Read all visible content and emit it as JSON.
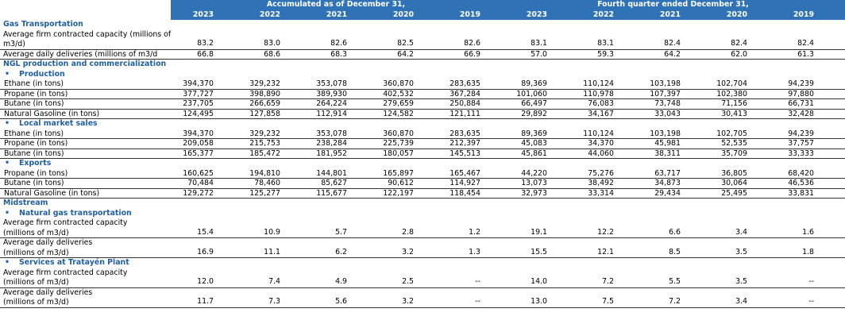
{
  "header": {
    "group_accumulated": "Accumulated as of December 31,",
    "group_quarter": "Fourth quarter ended December 31,",
    "years": [
      "2023",
      "2022",
      "2021",
      "2020",
      "2019",
      "2023",
      "2022",
      "2021",
      "2020",
      "2019"
    ]
  },
  "bullet": "•",
  "gas_transportation": {
    "title": "Gas Transportation",
    "capacity_label": "Average firm contracted capacity (millions of m3/d)",
    "capacity_values": [
      "83.2",
      "83.0",
      "82.6",
      "82.5",
      "82.6",
      "83.1",
      "83.1",
      "82.4",
      "82.4",
      "82.4"
    ],
    "deliveries_label": "Average daily deliveries (millions of m3/d",
    "deliveries_values": [
      "66.8",
      "68.6",
      "68.3",
      "64.2",
      "66.9",
      "57.0",
      "59.3",
      "64.2",
      "62.0",
      "61.3"
    ]
  },
  "ngl": {
    "title": "NGL production and commercialization",
    "production": {
      "title": "Production",
      "rows": [
        {
          "label": "Ethane (in tons)",
          "values": [
            "394,370",
            "329,232",
            "353,078",
            "360,870",
            "283,635",
            "89,369",
            "110,124",
            "103,198",
            "102,704",
            "94,239"
          ]
        },
        {
          "label": "Propane (in tons)",
          "values": [
            "377,727",
            "398,890",
            "389,930",
            "402,532",
            "367,284",
            "101,060",
            "110,978",
            "107,397",
            "102,380",
            "97,880"
          ]
        },
        {
          "label": "Butane (in tons)",
          "values": [
            "237,705",
            "266,659",
            "264,224",
            "279,659",
            "250,884",
            "66,497",
            "76,083",
            "73,748",
            "71,156",
            "66,731"
          ]
        },
        {
          "label": "Natural Gasoline (in tons)",
          "values": [
            "124,495",
            "127,858",
            "112,914",
            "124,582",
            "121,111",
            "29,892",
            "34,167",
            "33,043",
            "30,413",
            "32,428"
          ]
        }
      ]
    },
    "local": {
      "title": "Local market sales",
      "rows": [
        {
          "label": "Ethane (in tons)",
          "values": [
            "394,370",
            "329,232",
            "353,078",
            "360,870",
            "283,635",
            "89,369",
            "110,124",
            "103,198",
            "102,705",
            "94,239"
          ]
        },
        {
          "label": "Propane (in tons)",
          "values": [
            "209,058",
            "215,753",
            "238,284",
            "225,739",
            "212,397",
            "45,083",
            "34,370",
            "45,981",
            "52,535",
            "37,757"
          ]
        },
        {
          "label": "Butane (in tons)",
          "values": [
            "165,377",
            "185,472",
            "181,952",
            "180,057",
            "145,513",
            "45,861",
            "44,060",
            "38,311",
            "35,709",
            "33,333"
          ]
        }
      ]
    },
    "exports": {
      "title": "Exports",
      "rows": [
        {
          "label": "Propane (in tons)",
          "values": [
            "160,625",
            "194,810",
            "144,801",
            "165,897",
            "165,467",
            "44,220",
            "75,276",
            "63,717",
            "36,805",
            "68,420"
          ]
        },
        {
          "label": "Butane (in tons)",
          "values": [
            "70,484",
            "78,460",
            "85,627",
            "90,612",
            "114,927",
            "13,073",
            "38,492",
            "34,873",
            "30,064",
            "46,536"
          ]
        },
        {
          "label": "Natural Gasoline (in tons)",
          "values": [
            "129,272",
            "125,277",
            "115,677",
            "122,197",
            "118,454",
            "32,973",
            "33,314",
            "29,434",
            "25,495",
            "33,831"
          ]
        }
      ]
    }
  },
  "midstream": {
    "title": "Midstream",
    "natural_gas": {
      "title": "Natural gas transportation",
      "capacity_label_1": "Average firm contracted capacity",
      "capacity_label_2": "(millions of m3/d)",
      "capacity_values": [
        "15.4",
        "10.9",
        "5.7",
        "2.8",
        "1.2",
        "19.1",
        "12.2",
        "6.6",
        "3.4",
        "1.6"
      ],
      "deliveries_label_1": "Average daily deliveries",
      "deliveries_label_2": "(millions of m3/d)",
      "deliveries_values": [
        "16.9",
        "11.1",
        "6.2",
        "3.2",
        "1.3",
        "15.5",
        "12.1",
        "8.5",
        "3.5",
        "1.8"
      ]
    },
    "tratayen": {
      "title": "Services at Tratayén Plant",
      "capacity_label_1": "Average firm contracted capacity",
      "capacity_label_2": "(millions of m3/d)",
      "capacity_values": [
        "12.0",
        "7.4",
        "4.9",
        "2.5",
        "--",
        "14.0",
        "7.2",
        "5.5",
        "3.5",
        "--"
      ],
      "deliveries_label_1": "Average daily deliveries",
      "deliveries_label_2": "(millions of m3/d)",
      "deliveries_values": [
        "11.7",
        "7.3",
        "5.6",
        "3.2",
        "--",
        "13.0",
        "7.5",
        "7.2",
        "3.4",
        "--"
      ]
    }
  },
  "colors": {
    "header_bg": "#2f73b6",
    "section_title": "#1f5fa6"
  }
}
